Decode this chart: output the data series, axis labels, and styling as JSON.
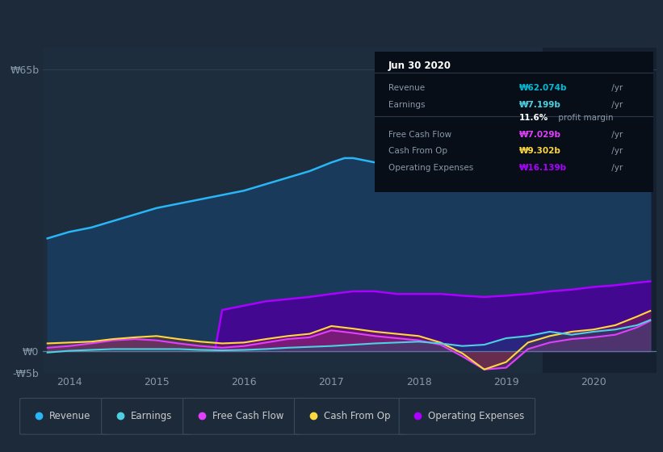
{
  "bg_color": "#1c2a3a",
  "plot_bg_color": "#1e2d3d",
  "dark_region_color": "#152030",
  "ylim": [
    -5,
    70
  ],
  "ytick_positions": [
    -5,
    0,
    65
  ],
  "ytick_labels": [
    "-₩5b",
    "₩0",
    "₩65b"
  ],
  "xlim_start": 2013.7,
  "xlim_end": 2020.72,
  "xtick_years": [
    2014,
    2015,
    2016,
    2017,
    2018,
    2019,
    2020
  ],
  "dark_region_start": 2019.42,
  "revenue_color": "#29b6f6",
  "revenue_fill_color": "#1a3a5c",
  "earnings_color": "#4dd0e1",
  "fcf_color": "#e040fb",
  "cashfromop_color": "#ffd740",
  "opex_color": "#aa00ff",
  "opex_fill_color": "#4a0099",
  "zero_line_color": "#5a7a9a",
  "grid_color": "#2a3f58",
  "tick_color": "#8899aa",
  "revenue_x": [
    2013.75,
    2014.0,
    2014.25,
    2014.5,
    2014.75,
    2015.0,
    2015.25,
    2015.5,
    2015.75,
    2016.0,
    2016.25,
    2016.5,
    2016.75,
    2017.0,
    2017.15,
    2017.25,
    2017.5,
    2017.75,
    2018.0,
    2018.25,
    2018.5,
    2018.75,
    2019.0,
    2019.25,
    2019.5,
    2019.75,
    2020.0,
    2020.25,
    2020.5,
    2020.65
  ],
  "revenue_y": [
    26,
    27.5,
    28.5,
    30,
    31.5,
    33,
    34,
    35,
    36,
    37,
    38.5,
    40,
    41.5,
    43.5,
    44.5,
    44.5,
    43.5,
    43.0,
    45.5,
    45.5,
    44,
    42.5,
    42,
    43,
    44,
    45.5,
    47.5,
    51,
    57.5,
    62
  ],
  "earnings_x": [
    2013.75,
    2014.0,
    2014.25,
    2014.5,
    2014.75,
    2015.0,
    2015.25,
    2015.5,
    2015.75,
    2016.0,
    2016.25,
    2016.5,
    2016.75,
    2017.0,
    2017.25,
    2017.5,
    2017.75,
    2018.0,
    2018.25,
    2018.5,
    2018.75,
    2019.0,
    2019.25,
    2019.5,
    2019.75,
    2020.0,
    2020.25,
    2020.5,
    2020.65
  ],
  "earnings_y": [
    -0.3,
    0.1,
    0.3,
    0.5,
    0.5,
    0.5,
    0.5,
    0.3,
    0.2,
    0.3,
    0.5,
    0.8,
    1.0,
    1.2,
    1.5,
    1.8,
    2.0,
    2.2,
    1.8,
    1.2,
    1.5,
    3.0,
    3.5,
    4.5,
    3.8,
    4.5,
    5.0,
    6.0,
    7.2
  ],
  "fcf_x": [
    2013.75,
    2014.0,
    2014.25,
    2014.5,
    2014.75,
    2015.0,
    2015.25,
    2015.5,
    2015.75,
    2016.0,
    2016.25,
    2016.5,
    2016.75,
    2017.0,
    2017.25,
    2017.5,
    2017.75,
    2018.0,
    2018.25,
    2018.5,
    2018.75,
    2019.0,
    2019.25,
    2019.5,
    2019.75,
    2020.0,
    2020.25,
    2020.5,
    2020.65
  ],
  "fcf_y": [
    0.8,
    1.2,
    1.8,
    2.5,
    2.8,
    2.5,
    1.8,
    1.2,
    0.8,
    1.2,
    2.0,
    2.8,
    3.2,
    4.8,
    4.2,
    3.5,
    3.0,
    2.5,
    1.5,
    -1.2,
    -4.2,
    -3.8,
    0.5,
    2.0,
    2.8,
    3.2,
    3.8,
    5.5,
    7.0
  ],
  "cop_x": [
    2013.75,
    2014.0,
    2014.25,
    2014.5,
    2014.75,
    2015.0,
    2015.25,
    2015.5,
    2015.75,
    2016.0,
    2016.25,
    2016.5,
    2016.75,
    2017.0,
    2017.25,
    2017.5,
    2017.75,
    2018.0,
    2018.25,
    2018.5,
    2018.75,
    2019.0,
    2019.25,
    2019.5,
    2019.75,
    2020.0,
    2020.25,
    2020.5,
    2020.65
  ],
  "cop_y": [
    1.8,
    2.0,
    2.2,
    2.8,
    3.2,
    3.5,
    2.8,
    2.2,
    1.8,
    2.0,
    2.8,
    3.5,
    4.0,
    5.8,
    5.2,
    4.5,
    4.0,
    3.5,
    2.0,
    -0.5,
    -4.2,
    -2.5,
    2.0,
    3.5,
    4.5,
    5.0,
    6.0,
    8.0,
    9.3
  ],
  "opex_x": [
    2015.67,
    2015.75,
    2016.0,
    2016.25,
    2016.5,
    2016.75,
    2017.0,
    2017.25,
    2017.5,
    2017.75,
    2018.0,
    2018.25,
    2018.5,
    2018.75,
    2019.0,
    2019.25,
    2019.5,
    2019.75,
    2020.0,
    2020.25,
    2020.5,
    2020.65
  ],
  "opex_y": [
    0.5,
    9.5,
    10.5,
    11.5,
    12.0,
    12.5,
    13.2,
    13.8,
    13.8,
    13.2,
    13.2,
    13.2,
    12.8,
    12.5,
    12.8,
    13.2,
    13.8,
    14.2,
    14.8,
    15.2,
    15.8,
    16.1
  ],
  "infobox": {
    "title": "Jun 30 2020",
    "rows": [
      {
        "label": "Revenue",
        "value": "₩62.074b",
        "suffix": " /yr",
        "value_color": "#00bcd4",
        "has_divider_before": false
      },
      {
        "label": "Earnings",
        "value": "₩7.199b",
        "suffix": " /yr",
        "value_color": "#4dd0e1",
        "has_divider_before": false
      },
      {
        "label": "",
        "value": "11.6%",
        "suffix": " profit margin",
        "value_color": "#ffffff",
        "has_divider_before": false
      },
      {
        "label": "Free Cash Flow",
        "value": "₩7.029b",
        "suffix": " /yr",
        "value_color": "#e040fb",
        "has_divider_before": true
      },
      {
        "label": "Cash From Op",
        "value": "₩9.302b",
        "suffix": " /yr",
        "value_color": "#ffd740",
        "has_divider_before": false
      },
      {
        "label": "Operating Expenses",
        "value": "₩16.139b",
        "suffix": " /yr",
        "value_color": "#aa00ff",
        "has_divider_before": false
      }
    ]
  },
  "legend_items": [
    {
      "label": "Revenue",
      "color": "#29b6f6"
    },
    {
      "label": "Earnings",
      "color": "#4dd0e1"
    },
    {
      "label": "Free Cash Flow",
      "color": "#e040fb"
    },
    {
      "label": "Cash From Op",
      "color": "#ffd740"
    },
    {
      "label": "Operating Expenses",
      "color": "#aa00ff"
    }
  ]
}
